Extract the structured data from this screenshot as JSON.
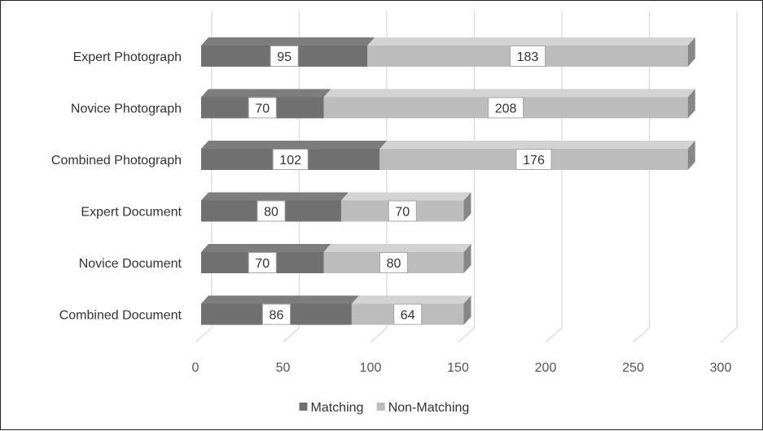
{
  "chart_data": {
    "type": "bar",
    "orientation": "horizontal",
    "stacked": true,
    "style": "3d",
    "categories": [
      "Expert Photograph",
      "Novice Photograph",
      "Combined Photograph",
      "Expert Document",
      "Novice Document",
      "Combined Document"
    ],
    "series": [
      {
        "name": "Matching",
        "values": [
          95,
          70,
          102,
          80,
          70,
          86
        ],
        "color": "#707070"
      },
      {
        "name": "Non-Matching",
        "values": [
          183,
          208,
          176,
          70,
          80,
          64
        ],
        "color": "#bcbcbc"
      }
    ],
    "x_ticks": [
      "0",
      "50",
      "100",
      "150",
      "200",
      "250",
      "300"
    ],
    "xlim": [
      0,
      300
    ],
    "grid": true,
    "legend_position": "bottom",
    "data_labels": true
  }
}
